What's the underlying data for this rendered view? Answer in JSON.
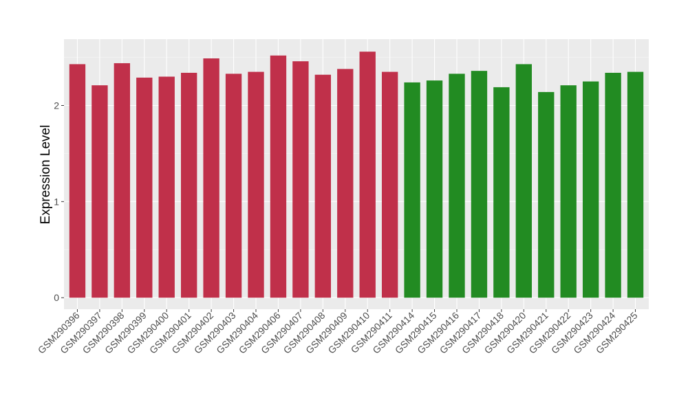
{
  "chart_data": {
    "type": "bar",
    "title": "",
    "xlabel": "",
    "ylabel": "Expression Level",
    "ylim": [
      -0.12,
      2.69
    ],
    "yticks": [
      0,
      1,
      2
    ],
    "grid": true,
    "legend": "none",
    "categories": [
      "GSM290396",
      "GSM290397",
      "GSM290398",
      "GSM290399",
      "GSM290400",
      "GSM290401",
      "GSM290402",
      "GSM290403",
      "GSM290404",
      "GSM290406",
      "GSM290407",
      "GSM290408",
      "GSM290409",
      "GSM290410",
      "GSM290411",
      "GSM290414",
      "GSM290415",
      "GSM290416",
      "GSM290417",
      "GSM290418",
      "GSM290420",
      "GSM290421",
      "GSM290422",
      "GSM290423",
      "GSM290424",
      "GSM290425"
    ],
    "values": [
      2.43,
      2.21,
      2.44,
      2.29,
      2.3,
      2.34,
      2.49,
      2.33,
      2.35,
      2.52,
      2.46,
      2.32,
      2.38,
      2.56,
      2.35,
      2.24,
      2.26,
      2.33,
      2.36,
      2.19,
      2.43,
      2.14,
      2.21,
      2.25,
      2.34,
      2.35
    ],
    "groups": [
      "a",
      "a",
      "a",
      "a",
      "a",
      "a",
      "a",
      "a",
      "a",
      "a",
      "a",
      "a",
      "a",
      "a",
      "a",
      "b",
      "b",
      "b",
      "b",
      "b",
      "b",
      "b",
      "b",
      "b",
      "b",
      "b"
    ],
    "colors": {
      "a": "#C0304A",
      "b": "#228B22"
    }
  }
}
